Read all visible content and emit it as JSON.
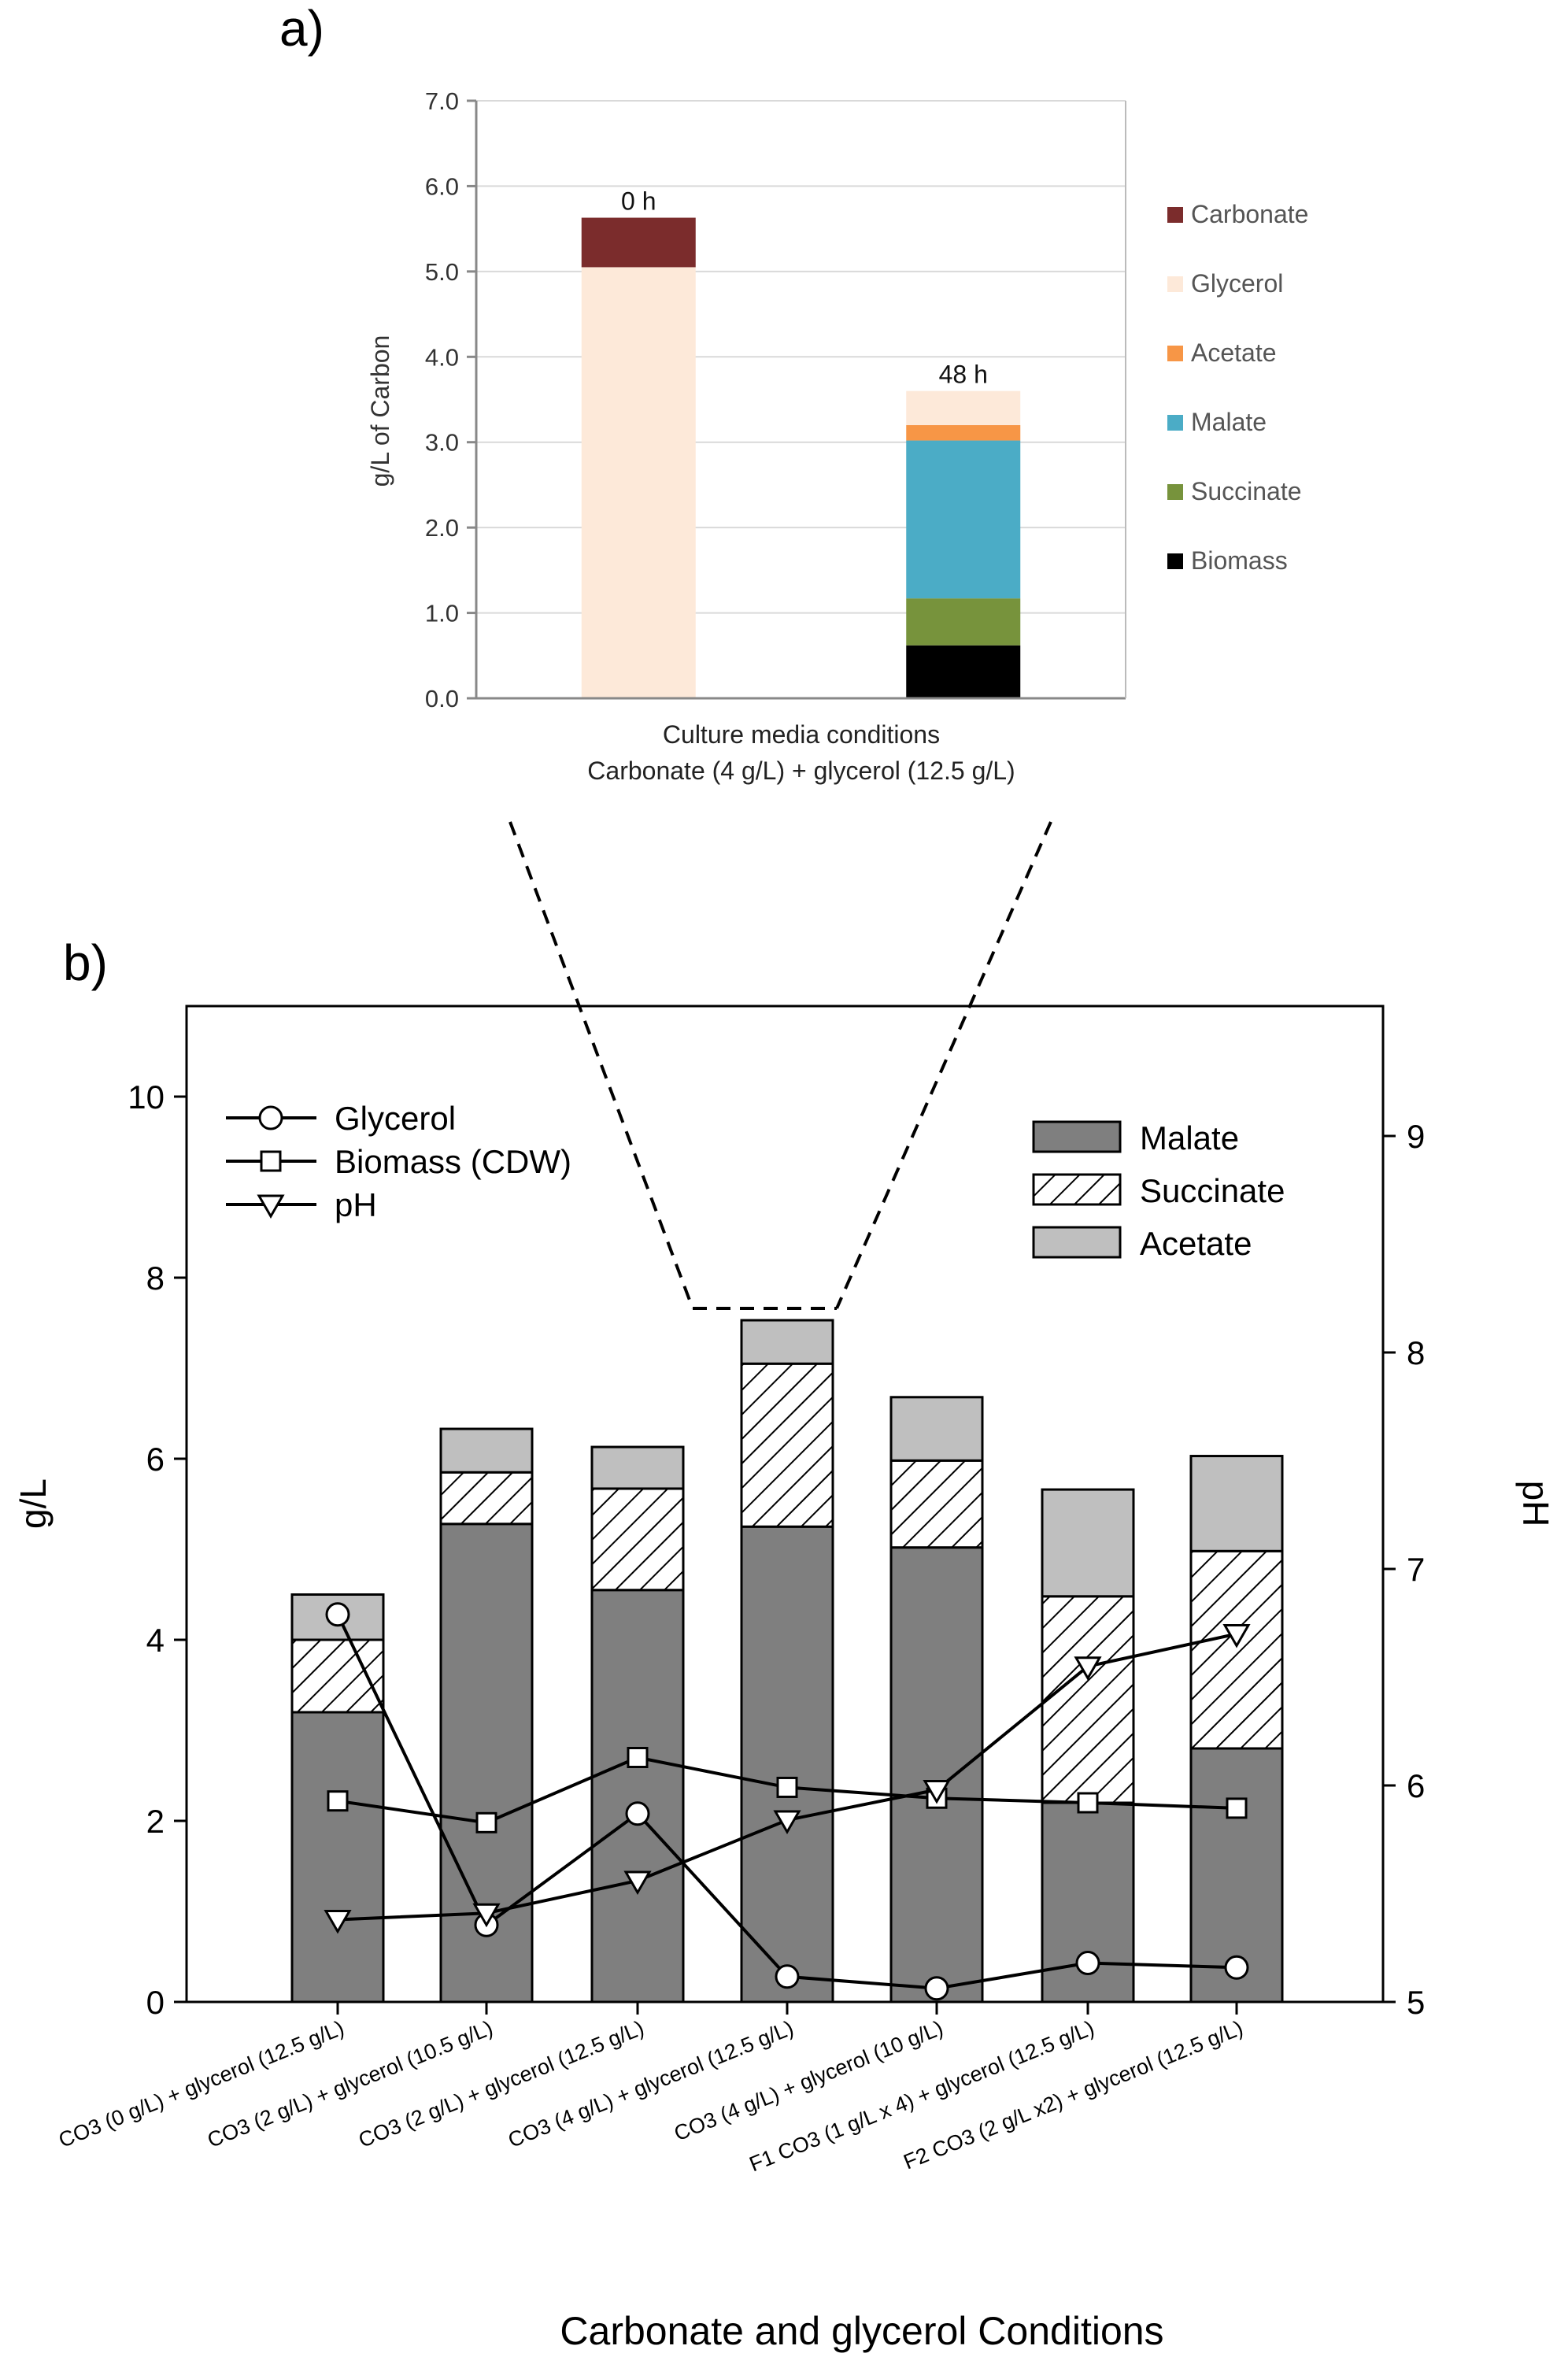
{
  "chart_data": [
    {
      "panel_label": "a)",
      "type": "bar",
      "stacked": true,
      "categories": [
        "0 h",
        "48 h"
      ],
      "ylabel": "g/L of Carbon",
      "xlabel_lines": [
        "Culture media conditions",
        "Carbonate (4 g/L) + glycerol (12.5 g/L)"
      ],
      "ylim": [
        0,
        7
      ],
      "yticks": [
        "0.0",
        "1.0",
        "2.0",
        "3.0",
        "4.0",
        "5.0",
        "6.0",
        "7.0"
      ],
      "grid": true,
      "legend_position": "right",
      "series": [
        {
          "name": "Biomass",
          "color": "#000000",
          "values": [
            0,
            0.62
          ]
        },
        {
          "name": "Succinate",
          "color": "#77933c",
          "values": [
            0,
            0.55
          ]
        },
        {
          "name": "Malate",
          "color": "#4bacc6",
          "values": [
            0,
            1.85
          ]
        },
        {
          "name": "Acetate",
          "color": "#f79646",
          "values": [
            0,
            0.18
          ]
        },
        {
          "name": "Glycerol",
          "color": "#fde9d9",
          "values": [
            5.05,
            0.4
          ]
        },
        {
          "name": "Carbonate",
          "color": "#7b2c2c",
          "values": [
            0.58,
            0
          ]
        }
      ],
      "legend_order": [
        "Carbonate",
        "Glycerol",
        "Acetate",
        "Malate",
        "Succinate",
        "Biomass"
      ]
    },
    {
      "panel_label": "b)",
      "type": "bar",
      "stacked": true,
      "categories": [
        "CO3 (0 g/L) + glycerol (12.5 g/L)",
        "CO3 (2 g/L) + glycerol (10.5  g/L)",
        "CO3 (2 g/L) +  glycerol (12.5 g/L)",
        "CO3 (4  g/L) + glycerol (12.5 g/L)",
        "CO3 (4  g/L) + glycerol (10 g/L)",
        "F1 CO3 (1 g/L x 4) + glycerol (12.5 g/L)",
        "F2 CO3 (2 g/L x2) + glycerol (12.5 g/L)"
      ],
      "xlabel": "Carbonate and glycerol Conditions",
      "ylabel": "g/L",
      "y2label": "pH",
      "ylim": [
        0,
        11
      ],
      "yticks": [
        0,
        2,
        4,
        6,
        8,
        10
      ],
      "y2lim": [
        5,
        9.6
      ],
      "y2ticks": [
        5,
        6,
        7,
        8,
        9
      ],
      "bar_series": [
        {
          "name": "Malate",
          "fill": "dark-gray",
          "values": [
            3.2,
            5.28,
            4.55,
            5.25,
            5.02,
            2.2,
            2.8
          ]
        },
        {
          "name": "Succinate",
          "fill": "hatched",
          "values": [
            0.8,
            0.57,
            1.12,
            1.8,
            0.96,
            2.28,
            2.18
          ]
        },
        {
          "name": "Acetate",
          "fill": "light-gray",
          "values": [
            0.5,
            0.48,
            0.46,
            0.48,
            0.7,
            1.18,
            1.05
          ]
        }
      ],
      "line_series": [
        {
          "name": "Glycerol",
          "marker": "circle",
          "axis": "left",
          "values": [
            4.28,
            0.85,
            2.08,
            0.28,
            0.15,
            0.43,
            0.38
          ]
        },
        {
          "name": "Biomass (CDW)",
          "marker": "square",
          "axis": "left",
          "values": [
            2.22,
            1.98,
            2.7,
            2.37,
            2.25,
            2.2,
            2.14
          ]
        },
        {
          "name": "pH",
          "marker": "triangle-down",
          "axis": "right",
          "values": [
            5.38,
            5.41,
            5.56,
            5.84,
            5.98,
            6.55,
            6.7
          ]
        }
      ],
      "line_legend_position": "top-left",
      "bar_legend_position": "top-right"
    }
  ]
}
